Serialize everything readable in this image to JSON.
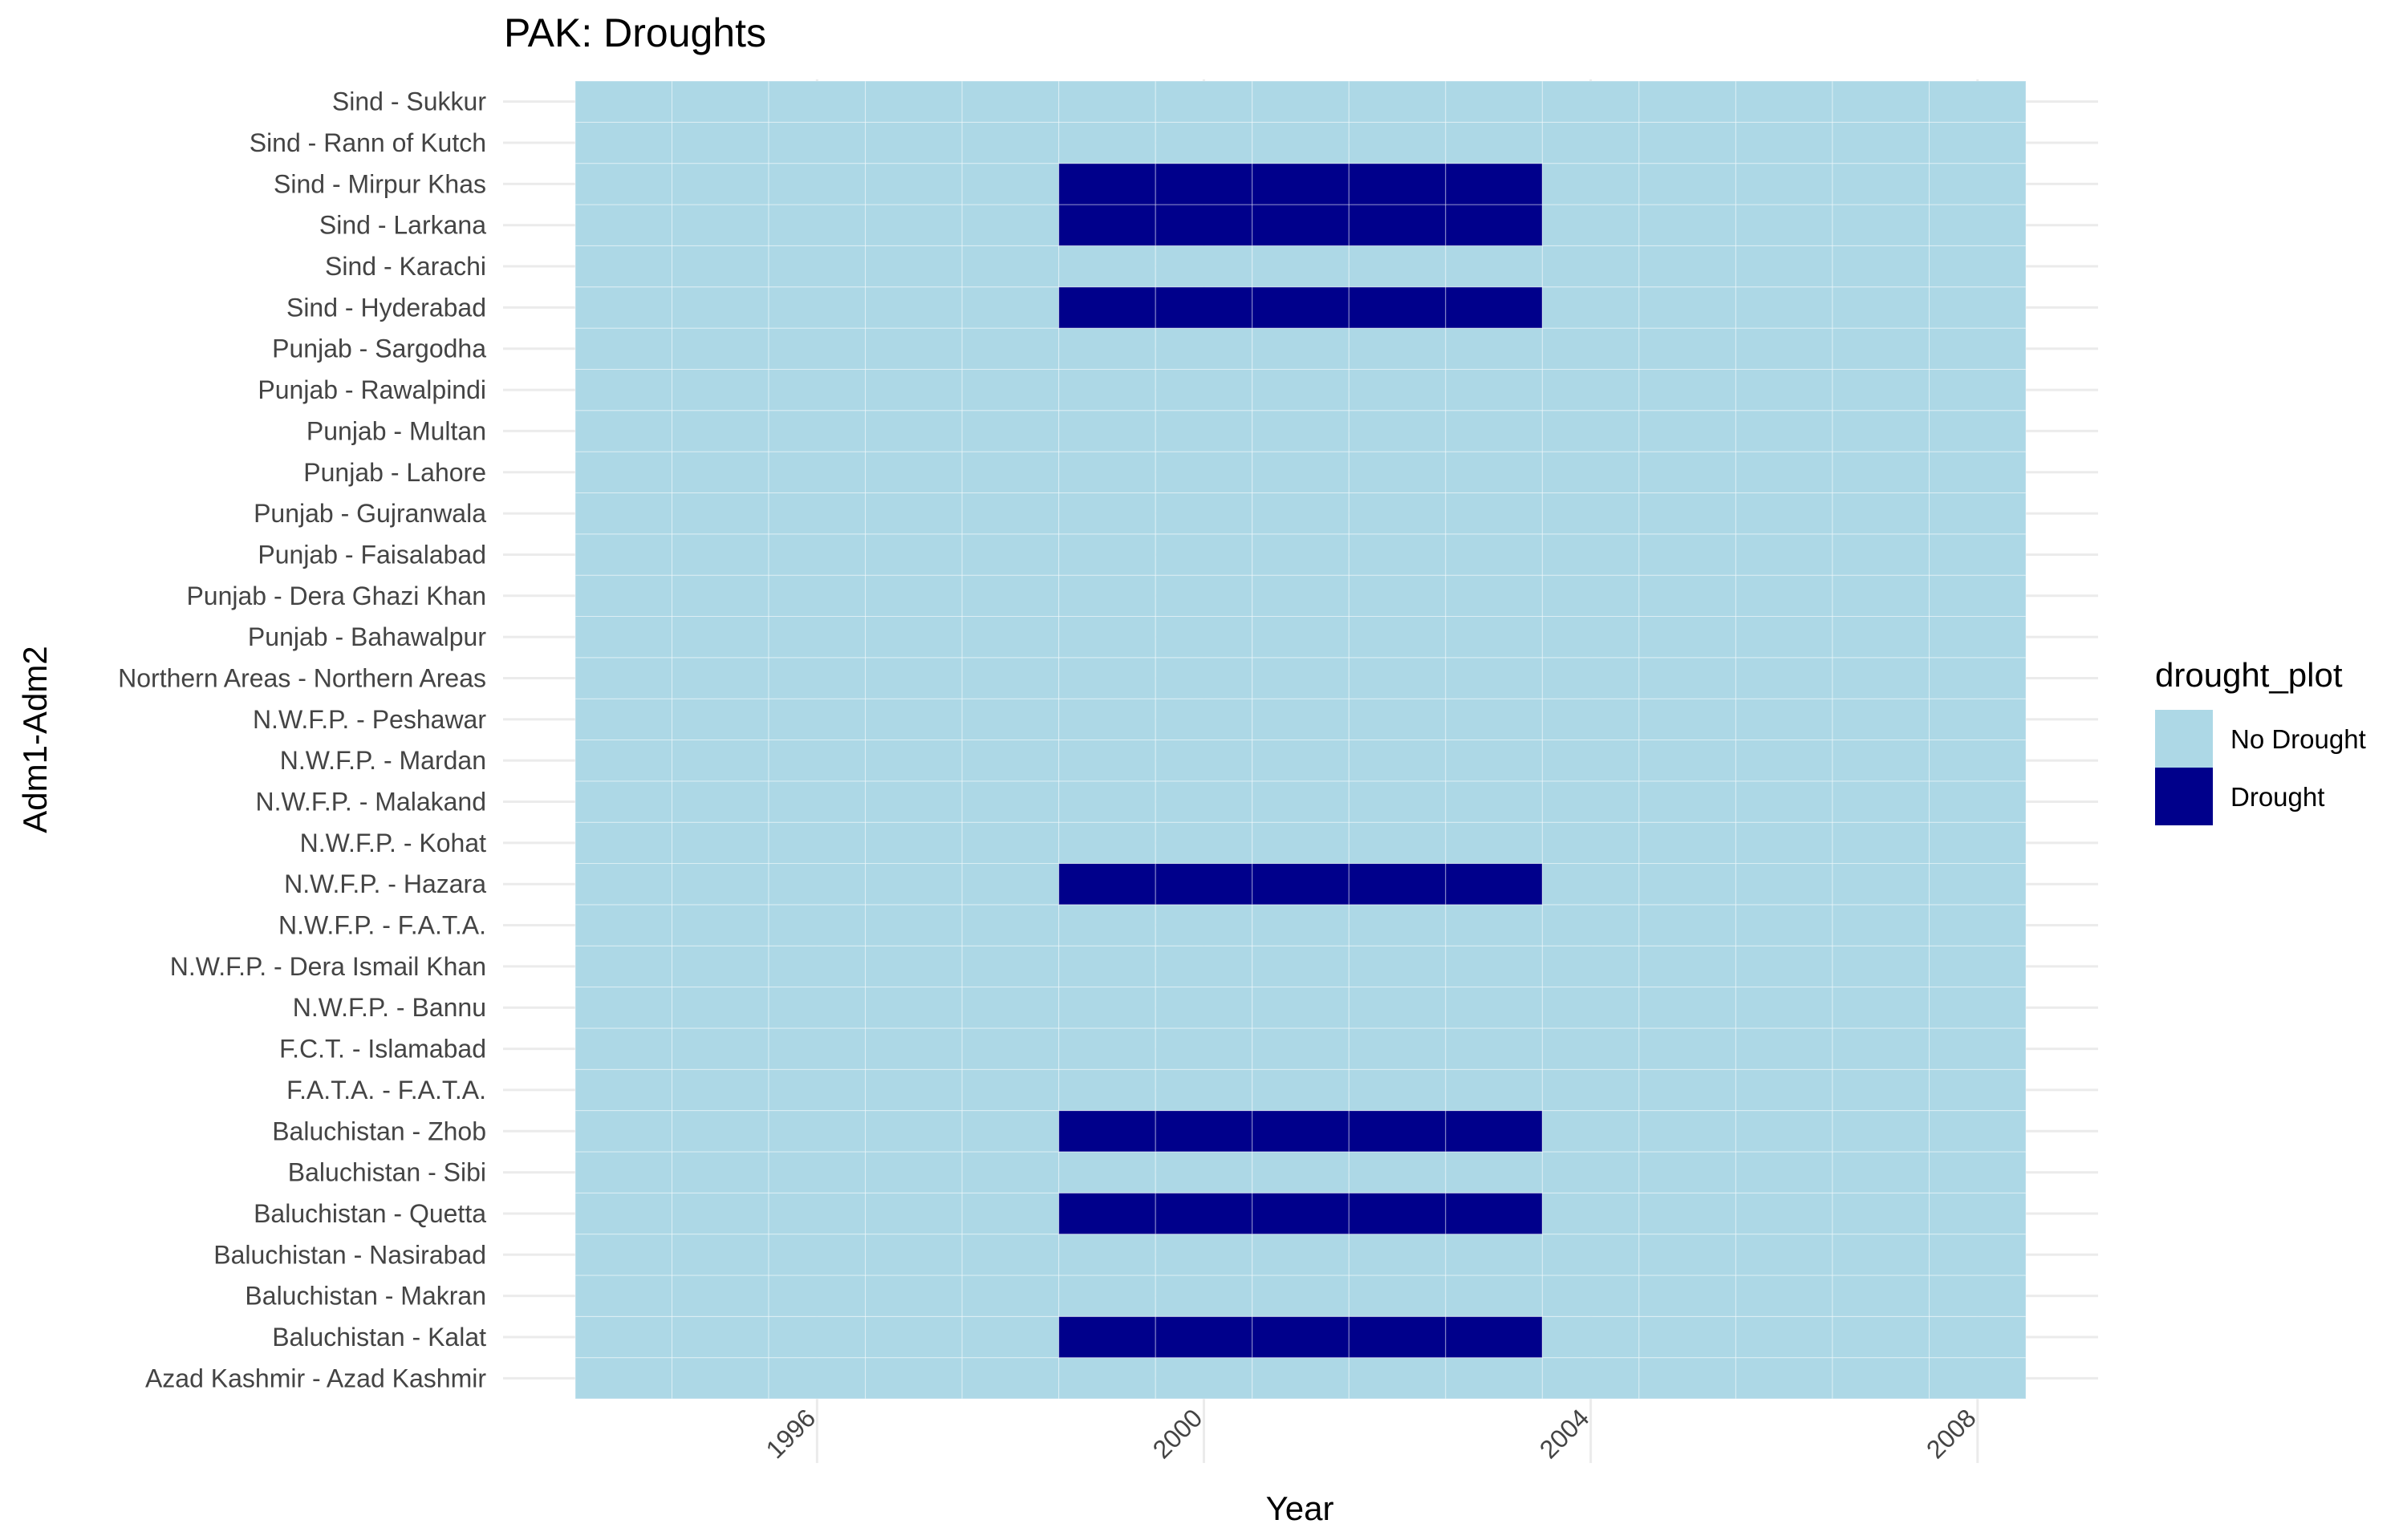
{
  "chart_data": {
    "type": "heatmap",
    "title": "PAK: Droughts",
    "xlabel": "Year",
    "ylabel": "Adm1-Adm2",
    "x": [
      1994,
      1995,
      1996,
      1997,
      1998,
      1999,
      2000,
      2001,
      2002,
      2003,
      2004,
      2005,
      2006,
      2007,
      2008
    ],
    "xlim": [
      1993.5,
      2008.5
    ],
    "x_ticks": [
      1996,
      2000,
      2004,
      2008
    ],
    "x_tick_labels": [
      "1996",
      "2000",
      "2004",
      "2008"
    ],
    "x_tick_angle": 45,
    "categories": [
      "Azad Kashmir - Azad Kashmir",
      "Baluchistan - Kalat",
      "Baluchistan - Makran",
      "Baluchistan - Nasirabad",
      "Baluchistan - Quetta",
      "Baluchistan - Sibi",
      "Baluchistan - Zhob",
      "F.A.T.A. - F.A.T.A.",
      "F.C.T. - Islamabad",
      "N.W.F.P. - Bannu",
      "N.W.F.P. - Dera Ismail Khan",
      "N.W.F.P. - F.A.T.A.",
      "N.W.F.P. - Hazara",
      "N.W.F.P. - Kohat",
      "N.W.F.P. - Malakand",
      "N.W.F.P. - Mardan",
      "N.W.F.P. - Peshawar",
      "Northern Areas - Northern Areas",
      "Punjab - Bahawalpur",
      "Punjab - Dera Ghazi Khan",
      "Punjab - Faisalabad",
      "Punjab - Gujranwala",
      "Punjab - Lahore",
      "Punjab - Multan",
      "Punjab - Rawalpindi",
      "Punjab - Sargodha",
      "Sind - Hyderabad",
      "Sind - Karachi",
      "Sind - Larkana",
      "Sind - Mirpur Khas",
      "Sind - Rann of Kutch",
      "Sind - Sukkur"
    ],
    "drought_cells": [
      {
        "region": "Baluchistan - Kalat",
        "years": [
          1999,
          2000,
          2001,
          2002,
          2003
        ]
      },
      {
        "region": "Baluchistan - Quetta",
        "years": [
          1999,
          2000,
          2001,
          2002,
          2003
        ]
      },
      {
        "region": "Baluchistan - Zhob",
        "years": [
          1999,
          2000,
          2001,
          2002,
          2003
        ]
      },
      {
        "region": "N.W.F.P. - Hazara",
        "years": [
          1999,
          2000,
          2001,
          2002,
          2003
        ]
      },
      {
        "region": "Sind - Hyderabad",
        "years": [
          1999,
          2000,
          2001,
          2002,
          2003
        ]
      },
      {
        "region": "Sind - Larkana",
        "years": [
          1999,
          2000,
          2001,
          2002,
          2003
        ]
      },
      {
        "region": "Sind - Mirpur Khas",
        "years": [
          1999,
          2000,
          2001,
          2002,
          2003
        ]
      }
    ],
    "legend": {
      "title": "drought_plot",
      "position": "right",
      "entries": [
        {
          "label": "No Drought",
          "color": "#add8e6"
        },
        {
          "label": "Drought",
          "color": "#00008b"
        }
      ]
    },
    "grid": true,
    "colors": {
      "no_drought": "#add8e6",
      "drought": "#00008b",
      "gridline": "#ebebeb",
      "tile_border": "#ffffff"
    }
  }
}
